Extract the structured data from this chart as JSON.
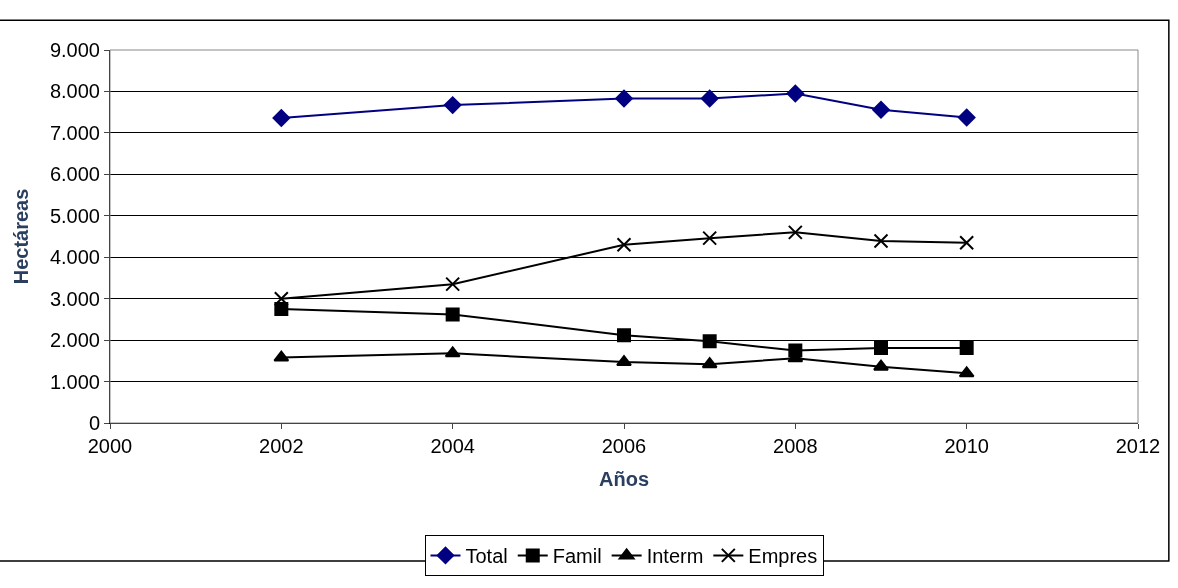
{
  "chart_data": {
    "type": "line",
    "xlabel": "Años",
    "ylabel": "Hectáreas",
    "x": [
      2002,
      2004,
      2006,
      2007,
      2008,
      2009,
      2010
    ],
    "series": [
      {
        "name": "Total",
        "color": "#000080",
        "marker": "diamond",
        "values": [
          7360,
          7670,
          7830,
          7830,
          7950,
          7560,
          7370
        ]
      },
      {
        "name": "Famil",
        "color": "#000000",
        "marker": "square",
        "values": [
          2750,
          2620,
          2120,
          1970,
          1750,
          1810,
          1810
        ]
      },
      {
        "name": "Interm",
        "color": "#000000",
        "marker": "triangle",
        "values": [
          1580,
          1680,
          1470,
          1420,
          1560,
          1360,
          1200
        ]
      },
      {
        "name": "Empres",
        "color": "#000000",
        "marker": "cross",
        "values": [
          3000,
          3350,
          4300,
          4460,
          4600,
          4390,
          4350
        ]
      }
    ],
    "xlim": [
      2000,
      2012
    ],
    "xticks": [
      2000,
      2002,
      2004,
      2006,
      2008,
      2010,
      2012
    ],
    "ylim": [
      0,
      9000
    ],
    "yticks": [
      0,
      {
        "value": 1000,
        "label": "1.000"
      },
      {
        "value": 2000,
        "label": "2.000"
      },
      {
        "value": 3000,
        "label": "3.000"
      },
      {
        "value": 4000,
        "label": "4.000"
      },
      {
        "value": 5000,
        "label": "5.000"
      },
      {
        "value": 6000,
        "label": "6.000"
      },
      {
        "value": 7000,
        "label": "7.000"
      },
      {
        "value": 8000,
        "label": "8.000"
      },
      {
        "value": 9000,
        "label": "9.000"
      }
    ],
    "grid": "y",
    "legend": "bottom",
    "line_style": "solid"
  }
}
